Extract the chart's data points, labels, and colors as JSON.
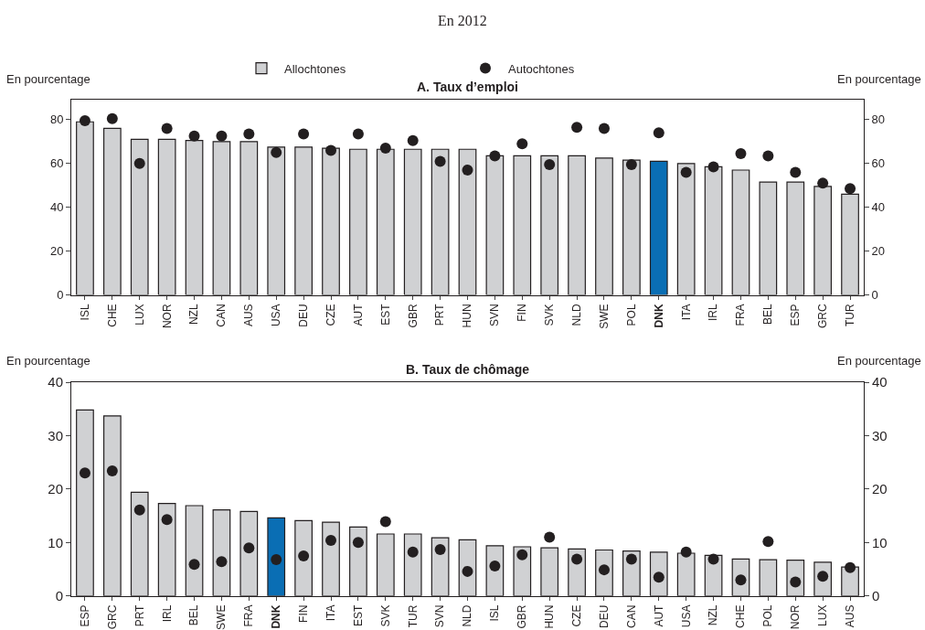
{
  "chart_data": [
    {
      "type": "bar",
      "subtitle": "En 2012",
      "title": "A. Taux d’emploi",
      "ylabel": "En pourcentage",
      "y2label": "En pourcentage",
      "legend": "top",
      "categories": [
        "ISL",
        "CHE",
        "LUX",
        "NOR",
        "NZL",
        "CAN",
        "AUS",
        "USA",
        "DEU",
        "CZE",
        "AUT",
        "EST",
        "GBR",
        "PRT",
        "HUN",
        "SVN",
        "FIN",
        "SVK",
        "NLD",
        "SWE",
        "POL",
        "DNK",
        "ITA",
        "IRL",
        "FRA",
        "BEL",
        "ESP",
        "GRC",
        "TUR"
      ],
      "series": [
        {
          "name": "Allochtones",
          "color": "#d0d1d3",
          "colors": [
            "#d0d1d3",
            "#d0d1d3",
            "#d0d1d3",
            "#d0d1d3",
            "#d0d1d3",
            "#d0d1d3",
            "#d0d1d3",
            "#d0d1d3",
            "#d0d1d3",
            "#d0d1d3",
            "#d0d1d3",
            "#d0d1d3",
            "#d0d1d3",
            "#d0d1d3",
            "#d0d1d3",
            "#d0d1d3",
            "#d0d1d3",
            "#d0d1d3",
            "#d0d1d3",
            "#d0d1d3",
            "#d0d1d3",
            "#0a6eb4",
            "#d0d1d3",
            "#d0d1d3",
            "#d0d1d3",
            "#d0d1d3",
            "#d0d1d3",
            "#d0d1d3",
            "#d0d1d3"
          ],
          "values": [
            79,
            76,
            71,
            71,
            70.5,
            70,
            70,
            67.5,
            67.5,
            67,
            66.5,
            66.5,
            66.5,
            66.5,
            66.5,
            63.5,
            63.5,
            63.5,
            63.5,
            62.5,
            61.5,
            61,
            60,
            58.5,
            57,
            51.5,
            51.5,
            49.5,
            46
          ]
        },
        {
          "name": "Autochtones",
          "type": "scatter",
          "marker": "circle",
          "color": "#231f20",
          "values": [
            79.5,
            80.5,
            60,
            76,
            72.5,
            72.5,
            73.5,
            65,
            73.5,
            66,
            73.5,
            67,
            70.5,
            61,
            57,
            63.5,
            69,
            59.5,
            76.5,
            76,
            59.5,
            74,
            56,
            58.5,
            64.5,
            63.5,
            56,
            51,
            48.5
          ]
        }
      ],
      "ylim": [
        0,
        89
      ],
      "yticks": [
        0,
        20,
        40,
        60,
        80
      ],
      "y2lim": [
        0,
        89
      ],
      "y2ticks": [
        0,
        20,
        40,
        60,
        80
      ],
      "grid": false
    },
    {
      "type": "bar",
      "title": "B. Taux de chômage",
      "ylabel": "En pourcentage",
      "y2label": "En pourcentage",
      "categories": [
        "ESP",
        "GRC",
        "PRT",
        "IRL",
        "BEL",
        "SWE",
        "FRA",
        "DNK",
        "FIN",
        "ITA",
        "EST",
        "SVK",
        "TUR",
        "SVN",
        "NLD",
        "ISL",
        "GBR",
        "HUN",
        "CZE",
        "DEU",
        "CAN",
        "AUT",
        "USA",
        "NZL",
        "CHE",
        "POL",
        "NOR",
        "LUX",
        "AUS"
      ],
      "series": [
        {
          "color": "#d0d1d3",
          "colors": [
            "#d0d1d3",
            "#d0d1d3",
            "#d0d1d3",
            "#d0d1d3",
            "#d0d1d3",
            "#d0d1d3",
            "#d0d1d3",
            "#0a6eb4",
            "#d0d1d3",
            "#d0d1d3",
            "#d0d1d3",
            "#d0d1d3",
            "#d0d1d3",
            "#d0d1d3",
            "#d0d1d3",
            "#d0d1d3",
            "#d0d1d3",
            "#d0d1d3",
            "#d0d1d3",
            "#d0d1d3",
            "#d0d1d3",
            "#d0d1d3",
            "#d0d1d3",
            "#d0d1d3",
            "#d0d1d3",
            "#d0d1d3",
            "#d0d1d3",
            "#d0d1d3",
            "#d0d1d3"
          ],
          "values": [
            34.8,
            33.7,
            19.4,
            17.3,
            16.9,
            16.1,
            15.8,
            14.6,
            14.1,
            13.8,
            12.9,
            11.6,
            11.6,
            10.9,
            10.5,
            9.4,
            9.2,
            9.0,
            8.8,
            8.6,
            8.4,
            8.2,
            8.0,
            7.6,
            6.9,
            6.8,
            6.7,
            6.3,
            5.4
          ]
        },
        {
          "type": "scatter",
          "marker": "circle",
          "color": "#231f20",
          "values": [
            23.0,
            23.4,
            16.1,
            14.3,
            5.9,
            6.4,
            9.0,
            6.8,
            7.5,
            10.4,
            10.0,
            13.9,
            8.2,
            8.7,
            4.6,
            5.6,
            7.7,
            11.0,
            6.9,
            4.9,
            6.9,
            3.5,
            8.2,
            6.9,
            3.0,
            10.2,
            2.6,
            3.7,
            5.3
          ]
        }
      ],
      "ylim": [
        0,
        40
      ],
      "yticks": [
        0,
        10,
        20,
        30,
        40
      ],
      "y2lim": [
        0,
        40
      ],
      "y2ticks": [
        0,
        10,
        20,
        30,
        40
      ],
      "grid": false
    }
  ]
}
